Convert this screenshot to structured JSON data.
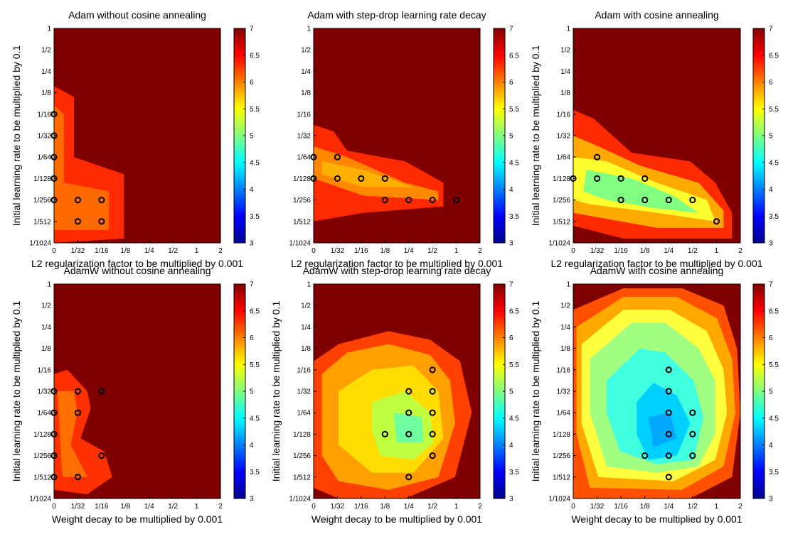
{
  "chart_data": [
    {
      "type": "heatmap",
      "title": "Adam without cosine annealing",
      "xlabel": "L2 regularization factor to be multiplied by 0.001",
      "ylabel": "Initial learning rate to be multiplied by 0.1",
      "x_ticks": [
        "0",
        "1/32",
        "1/16",
        "1/8",
        "1/4",
        "1/2",
        "1",
        "2"
      ],
      "y_ticks": [
        "1",
        "1/2",
        "1/4",
        "1/8",
        "1/16",
        "1/32",
        "1/64",
        "1/128",
        "1/256",
        "1/512",
        "1/1024"
      ],
      "colorbar_ticks": [
        "3",
        "3.5",
        "4",
        "4.5",
        "5",
        "5.5",
        "6",
        "6.5",
        "7"
      ],
      "clim": [
        3,
        7
      ],
      "markers": [
        [
          0,
          4
        ],
        [
          0,
          5
        ],
        [
          0,
          6
        ],
        [
          0,
          7
        ],
        [
          0,
          8
        ],
        [
          1,
          8
        ],
        [
          2,
          8
        ],
        [
          1,
          9
        ],
        [
          2,
          9
        ]
      ]
    },
    {
      "type": "heatmap",
      "title": "Adam with step-drop learning rate decay",
      "xlabel": "L2 regularization factor to be multiplied by 0.001",
      "ylabel": "",
      "x_ticks": [
        "0",
        "1/32",
        "1/16",
        "1/8",
        "1/4",
        "1/2",
        "1",
        "2"
      ],
      "y_ticks": [
        "1",
        "1/2",
        "1/4",
        "1/8",
        "1/16",
        "1/32",
        "1/64",
        "1/128",
        "1/256",
        "1/512",
        "1/1024"
      ],
      "colorbar_ticks": [
        "3",
        "3.5",
        "4",
        "4.5",
        "5",
        "5.5",
        "6",
        "6.5",
        "7"
      ],
      "clim": [
        3,
        7
      ],
      "markers": [
        [
          0,
          6
        ],
        [
          1,
          6
        ],
        [
          0,
          7
        ],
        [
          1,
          7
        ],
        [
          2,
          7
        ],
        [
          3,
          7
        ],
        [
          3,
          8
        ],
        [
          4,
          8
        ],
        [
          5,
          8
        ],
        [
          6,
          8
        ]
      ]
    },
    {
      "type": "heatmap",
      "title": "Adam with cosine annealing",
      "xlabel": "L2 regularization factor to be multiplied by 0.001",
      "ylabel": "Initial learning rate to be multiplied by 0.1",
      "x_ticks": [
        "0",
        "1/32",
        "1/16",
        "1/8",
        "1/4",
        "1/2",
        "1",
        "2"
      ],
      "y_ticks": [
        "1",
        "1/2",
        "1/4",
        "1/8",
        "1/16",
        "1/32",
        "1/64",
        "1/128",
        "1/256",
        "1/512",
        "1/1024"
      ],
      "colorbar_ticks": [
        "3",
        "3.5",
        "4",
        "4.5",
        "5",
        "5.5",
        "6",
        "6.5",
        "7"
      ],
      "clim": [
        3,
        7
      ],
      "markers": [
        [
          1,
          6
        ],
        [
          0,
          7
        ],
        [
          1,
          7
        ],
        [
          2,
          7
        ],
        [
          3,
          7
        ],
        [
          2,
          8
        ],
        [
          3,
          8
        ],
        [
          4,
          8
        ],
        [
          5,
          8
        ],
        [
          6,
          9
        ]
      ]
    },
    {
      "type": "heatmap",
      "title": "AdamW without cosine annealing",
      "xlabel": "Weight decay to be multiplied by 0.001",
      "ylabel": "Initial learning rate to be multiplied by 0.1",
      "x_ticks": [
        "0",
        "1/32",
        "1/16",
        "1/8",
        "1/4",
        "1/2",
        "1",
        "2"
      ],
      "y_ticks": [
        "1",
        "1/2",
        "1/4",
        "1/8",
        "1/16",
        "1/32",
        "1/64",
        "1/128",
        "1/256",
        "1/512",
        "1/1024"
      ],
      "colorbar_ticks": [
        "3",
        "3.5",
        "4",
        "4.5",
        "5",
        "5.5",
        "6",
        "6.5",
        "7"
      ],
      "clim": [
        3,
        7
      ],
      "markers": [
        [
          0,
          5
        ],
        [
          1,
          5
        ],
        [
          2,
          5
        ],
        [
          0,
          6
        ],
        [
          1,
          6
        ],
        [
          0,
          7
        ],
        [
          0,
          8
        ],
        [
          2,
          8
        ],
        [
          0,
          9
        ],
        [
          1,
          9
        ]
      ]
    },
    {
      "type": "heatmap",
      "title": "AdamW with step-drop learning rate decay",
      "xlabel": "Weight decay to be multiplied by 0.001",
      "ylabel": "Initial learning rate to be multiplied by 0.1",
      "x_ticks": [
        "0",
        "1/32",
        "1/16",
        "1/8",
        "1/4",
        "1/2",
        "1",
        "2"
      ],
      "y_ticks": [
        "1",
        "1/2",
        "1/4",
        "1/8",
        "1/16",
        "1/32",
        "1/64",
        "1/128",
        "1/256",
        "1/512",
        "1/1024"
      ],
      "colorbar_ticks": [
        "3",
        "3.5",
        "4",
        "4.5",
        "5",
        "5.5",
        "6",
        "6.5",
        "7"
      ],
      "clim": [
        3,
        7
      ],
      "markers": [
        [
          5,
          4
        ],
        [
          4,
          5
        ],
        [
          5,
          5
        ],
        [
          4,
          6
        ],
        [
          5,
          6
        ],
        [
          3,
          7
        ],
        [
          4,
          7
        ],
        [
          5,
          7
        ],
        [
          5,
          8
        ],
        [
          4,
          9
        ]
      ]
    },
    {
      "type": "heatmap",
      "title": "AdamW with cosine annealing",
      "xlabel": "Weight decay to be multiplied by 0.001",
      "ylabel": "Initial learning rate to be multiplied by 0.1",
      "x_ticks": [
        "0",
        "1/32",
        "1/16",
        "1/8",
        "1/4",
        "1/2",
        "1",
        "2"
      ],
      "y_ticks": [
        "1",
        "1/2",
        "1/4",
        "1/8",
        "1/16",
        "1/32",
        "1/64",
        "1/128",
        "1/256",
        "1/512",
        "1/1024"
      ],
      "colorbar_ticks": [
        "3",
        "3.5",
        "4",
        "4.5",
        "5",
        "5.5",
        "6",
        "6.5",
        "7"
      ],
      "clim": [
        3,
        7
      ],
      "markers": [
        [
          4,
          4
        ],
        [
          4,
          5
        ],
        [
          4,
          6
        ],
        [
          5,
          6
        ],
        [
          4,
          7
        ],
        [
          5,
          7
        ],
        [
          3,
          8
        ],
        [
          4,
          8
        ],
        [
          5,
          8
        ],
        [
          4,
          9
        ]
      ]
    }
  ]
}
